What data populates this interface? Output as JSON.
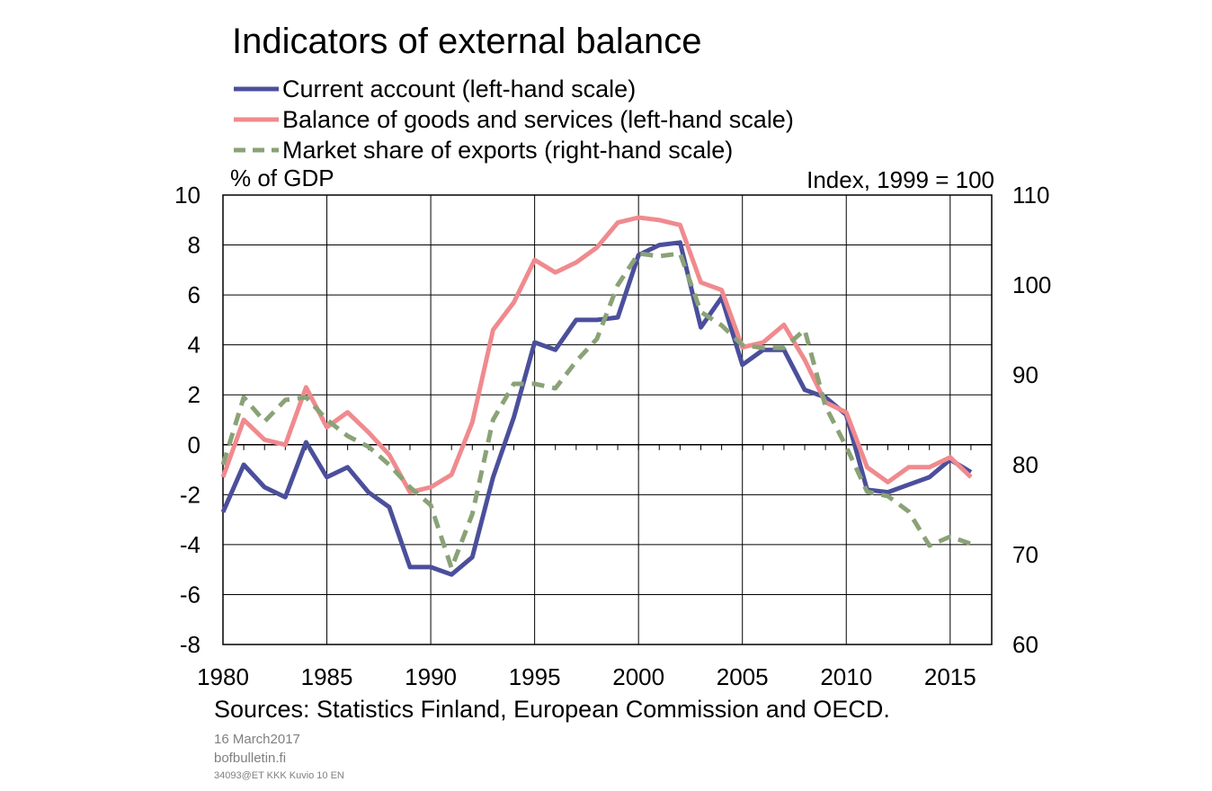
{
  "chart_data": {
    "type": "line",
    "title": "Indicators of external balance",
    "ylabel_left": "% of GDP",
    "ylabel_right": "Index,  1999 = 100",
    "ylim_left": [
      -8,
      10
    ],
    "ylim_right": [
      60,
      110
    ],
    "yticks_left": [
      "10",
      "8",
      "6",
      "4",
      "2",
      "0",
      "-2",
      "-4",
      "-6",
      "-8"
    ],
    "yticks_right": [
      "110",
      "100",
      "90",
      "80",
      "70",
      "60"
    ],
    "xlim": [
      1980,
      2017
    ],
    "xticks": [
      "1980",
      "1985",
      "1990",
      "1995",
      "2000",
      "2005",
      "2010",
      "2015"
    ],
    "grid": true,
    "legend_position": "top-left",
    "series": [
      {
        "name": "Current account (left-hand scale)",
        "axis": "left",
        "color": "#4B4F9B",
        "style": "solid",
        "x": [
          1980,
          1981,
          1982,
          1983,
          1984,
          1985,
          1986,
          1987,
          1988,
          1989,
          1990,
          1991,
          1992,
          1993,
          1994,
          1995,
          1996,
          1997,
          1998,
          1999,
          2000,
          2001,
          2002,
          2003,
          2004,
          2005,
          2006,
          2007,
          2008,
          2009,
          2010,
          2011,
          2012,
          2013,
          2014,
          2015,
          2016
        ],
        "values": [
          -2.7,
          -0.8,
          -1.7,
          -2.1,
          0.1,
          -1.3,
          -0.9,
          -1.9,
          -2.5,
          -4.9,
          -4.9,
          -5.2,
          -4.5,
          -1.3,
          1.1,
          4.1,
          3.8,
          5.0,
          5.0,
          5.1,
          7.6,
          8.0,
          8.1,
          4.7,
          5.9,
          3.2,
          3.8,
          3.8,
          2.2,
          1.9,
          1.2,
          -1.8,
          -1.9,
          -1.6,
          -1.3,
          -0.6,
          -1.1
        ]
      },
      {
        "name": "Balance of goods and services (left-hand scale)",
        "axis": "left",
        "color": "#F08A8E",
        "style": "solid",
        "x": [
          1980,
          1981,
          1982,
          1983,
          1984,
          1985,
          1986,
          1987,
          1988,
          1989,
          1990,
          1991,
          1992,
          1993,
          1994,
          1995,
          1996,
          1997,
          1998,
          1999,
          2000,
          2001,
          2002,
          2003,
          2004,
          2005,
          2006,
          2007,
          2008,
          2009,
          2010,
          2011,
          2012,
          2013,
          2014,
          2015,
          2016
        ],
        "values": [
          -1.3,
          1.0,
          0.2,
          0.0,
          2.3,
          0.7,
          1.3,
          0.5,
          -0.4,
          -1.9,
          -1.7,
          -1.2,
          0.9,
          4.6,
          5.7,
          7.4,
          6.9,
          7.3,
          7.9,
          8.9,
          9.1,
          9.0,
          8.8,
          6.5,
          6.2,
          3.9,
          4.1,
          4.8,
          3.4,
          1.7,
          1.3,
          -0.9,
          -1.5,
          -0.9,
          -0.9,
          -0.5,
          -1.3
        ]
      },
      {
        "name": "Market share of exports (right-hand scale)",
        "axis": "right",
        "color": "#8AA277",
        "style": "dashed",
        "x": [
          1980,
          1981,
          1982,
          1983,
          1984,
          1985,
          1986,
          1987,
          1988,
          1989,
          1990,
          1991,
          1992,
          1993,
          1994,
          1995,
          1996,
          1997,
          1998,
          1999,
          2000,
          2001,
          2002,
          2003,
          2004,
          2005,
          2006,
          2007,
          2008,
          2009,
          2010,
          2011,
          2012,
          2013,
          2014,
          2015,
          2016
        ],
        "values": [
          80,
          87.5,
          84.8,
          87.2,
          87.5,
          85.0,
          83.2,
          82.0,
          80.0,
          77.5,
          75.5,
          68.5,
          74.5,
          85.0,
          89.0,
          89.0,
          88.5,
          91.5,
          94.0,
          100.0,
          103.5,
          103.2,
          103.5,
          97.0,
          95.5,
          93.3,
          93.0,
          93.0,
          95.0,
          86.5,
          82.0,
          77.0,
          76.5,
          74.8,
          71.0,
          72.0,
          71.2
        ]
      }
    ]
  },
  "legend": [
    {
      "label": "Current account (left-hand scale)",
      "color": "#4B4F9B",
      "style": "solid"
    },
    {
      "label": "Balance of goods and services (left-hand scale)",
      "color": "#F08A8E",
      "style": "solid"
    },
    {
      "label": "Market share of exports (right-hand scale)",
      "color": "#8AA277",
      "style": "dashed"
    }
  ],
  "footer": {
    "sources": "Sources: Statistics Finland, European Commission and OECD.",
    "date": "16 March2017",
    "site": "bofbulletin.fi",
    "code": "34093@ET KKK Kuvio 10 EN"
  }
}
